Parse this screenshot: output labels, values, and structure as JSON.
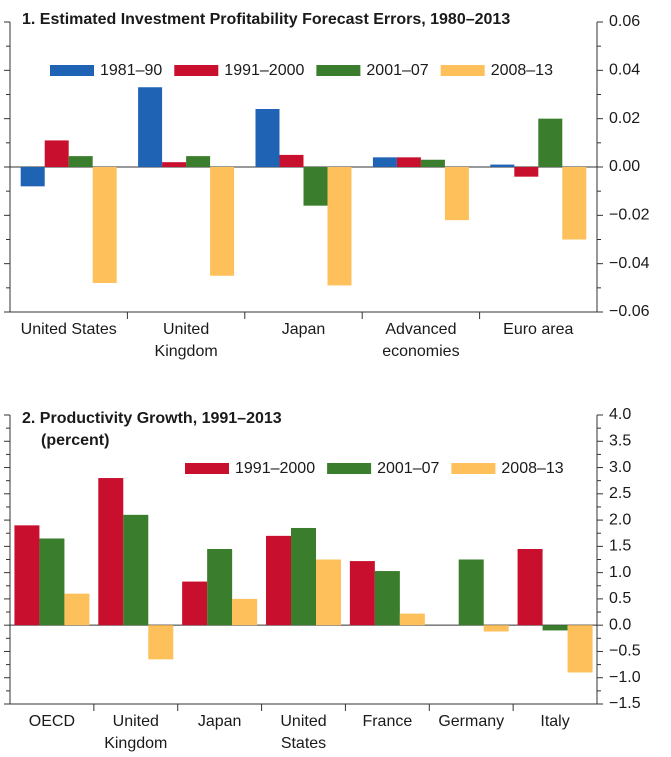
{
  "chart_data": [
    {
      "type": "bar",
      "title": "1. Estimated Investment Profitability Forecast Errors, 1980–2013",
      "categories": [
        "United States",
        "United Kingdom",
        "Japan",
        "Advanced economies",
        "Euro area"
      ],
      "series": [
        {
          "name": "1981–90",
          "color": "#1f63b5",
          "values": [
            -0.008,
            0.033,
            0.024,
            0.004,
            0.001
          ]
        },
        {
          "name": "1991–2000",
          "color": "#c8102e",
          "values": [
            0.011,
            0.002,
            0.005,
            0.004,
            -0.004
          ]
        },
        {
          "name": "2001–07",
          "color": "#3a7d2c",
          "values": [
            0.0045,
            0.0045,
            -0.016,
            0.003,
            0.02
          ]
        },
        {
          "name": "2008–13",
          "color": "#fdc05a",
          "values": [
            -0.048,
            -0.045,
            -0.049,
            -0.022,
            -0.03
          ]
        }
      ],
      "ylim": [
        -0.06,
        0.06
      ],
      "yticks": [
        0.06,
        0.04,
        0.02,
        {
          "value": 0,
          "label": "0.00"
        },
        {
          "value": -0.02,
          "label": "−0.02"
        },
        {
          "value": -0.04,
          "label": "−0.04"
        },
        {
          "value": -0.06,
          "label": "−0.06"
        }
      ]
    },
    {
      "type": "bar",
      "title": "2. Productivity Growth, 1991–2013",
      "subtitle": "(percent)",
      "categories": [
        "OECD",
        "United Kingdom",
        "Japan",
        "United States",
        "France",
        "Germany",
        "Italy"
      ],
      "series": [
        {
          "name": "1991–2000",
          "color": "#c8102e",
          "values": [
            1.9,
            2.8,
            0.83,
            1.7,
            1.22,
            null,
            1.45
          ]
        },
        {
          "name": "2001–07",
          "color": "#3a7d2c",
          "values": [
            1.65,
            2.1,
            1.45,
            1.85,
            1.03,
            1.25,
            -0.1
          ]
        },
        {
          "name": "2008–13",
          "color": "#fdc05a",
          "values": [
            0.6,
            -0.65,
            0.5,
            1.25,
            0.22,
            -0.12,
            -0.9
          ]
        }
      ],
      "ylim": [
        -1.5,
        4
      ],
      "yticks": [
        {
          "value": 4,
          "label": "4.0"
        },
        3.5,
        {
          "value": 3,
          "label": "3.0"
        },
        2.5,
        {
          "value": 2,
          "label": "2.0"
        },
        1.5,
        {
          "value": 1,
          "label": "1.0"
        },
        0.5,
        {
          "value": 0,
          "label": "0.0"
        },
        {
          "value": -0.5,
          "label": "−0.5"
        },
        {
          "value": -1,
          "label": "−1.0"
        },
        {
          "value": -1.5,
          "label": "−1.5"
        }
      ]
    }
  ]
}
